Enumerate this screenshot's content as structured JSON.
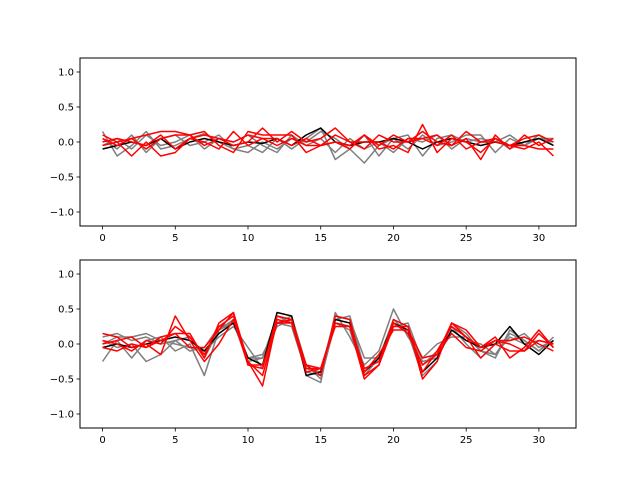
{
  "chart_data": [
    {
      "type": "line",
      "title": "",
      "xlabel": "",
      "ylabel": "",
      "xlim": [
        -1.55,
        32.55
      ],
      "ylim": [
        -1.2,
        1.2
      ],
      "xticks": [
        0,
        5,
        10,
        15,
        20,
        25,
        30
      ],
      "xtick_labels": [
        "0",
        "5",
        "10",
        "15",
        "20",
        "25",
        "30"
      ],
      "yticks": [
        1.0,
        0.5,
        0.0,
        -0.5,
        -1.0
      ],
      "ytick_labels": [
        "1.0",
        "0.5",
        "0.0",
        "−0.5",
        "−1.0"
      ],
      "grid": false,
      "x": [
        0,
        1,
        2,
        3,
        4,
        5,
        6,
        7,
        8,
        9,
        10,
        11,
        12,
        13,
        14,
        15,
        16,
        17,
        18,
        19,
        20,
        21,
        22,
        23,
        24,
        25,
        26,
        27,
        28,
        29,
        30,
        31
      ],
      "series": [
        {
          "color": "#7f7f7f",
          "values": [
            0.15,
            -0.2,
            -0.05,
            0.15,
            -0.1,
            -0.05,
            0.05,
            0.12,
            0.0,
            -0.1,
            -0.05,
            -0.15,
            0.05,
            -0.1,
            0.05,
            0.2,
            -0.25,
            -0.1,
            -0.3,
            -0.05,
            0.05,
            0.1,
            -0.2,
            0.05,
            0.1,
            0.0,
            0.05,
            0.0,
            0.1,
            -0.05,
            0.05,
            0.05
          ]
        },
        {
          "color": "#7f7f7f",
          "values": [
            0.05,
            -0.1,
            0.1,
            -0.15,
            0.05,
            0.1,
            -0.05,
            0.0,
            0.1,
            -0.1,
            -0.15,
            0.0,
            -0.1,
            0.05,
            0.0,
            0.15,
            0.05,
            -0.1,
            0.1,
            -0.2,
            0.05,
            -0.1,
            0.1,
            -0.05,
            0.0,
            0.1,
            0.1,
            -0.15,
            0.05,
            -0.05,
            0.1,
            -0.05
          ]
        },
        {
          "color": "#7f7f7f",
          "values": [
            -0.05,
            0.05,
            -0.1,
            0.1,
            -0.05,
            0.0,
            0.1,
            -0.1,
            0.05,
            0.0,
            0.1,
            -0.05,
            -0.15,
            0.1,
            -0.05,
            0.05,
            -0.15,
            0.05,
            -0.1,
            0.0,
            -0.15,
            0.05,
            0.0,
            0.1,
            -0.1,
            0.05,
            0.0,
            0.05,
            -0.1,
            0.0,
            0.05,
            0.0
          ]
        },
        {
          "color": "#000000",
          "values": [
            -0.1,
            -0.05,
            0.0,
            -0.05,
            0.05,
            -0.1,
            0.0,
            0.05,
            0.0,
            -0.05,
            0.0,
            -0.02,
            0.05,
            -0.05,
            0.1,
            0.2,
            0.0,
            -0.05,
            0.0,
            0.0,
            0.05,
            0.0,
            -0.1,
            0.0,
            0.05,
            0.0,
            -0.05,
            0.0,
            -0.05,
            0.0,
            0.05,
            -0.05
          ]
        },
        {
          "color": "#ff0000",
          "values": [
            0.1,
            0.0,
            0.05,
            0.1,
            0.15,
            0.15,
            0.1,
            0.15,
            -0.05,
            -0.15,
            0.15,
            0.1,
            0.1,
            0.1,
            -0.15,
            -0.05,
            0.0,
            -0.1,
            0.1,
            -0.1,
            -0.05,
            -0.15,
            0.25,
            -0.15,
            0.05,
            0.0,
            -0.15,
            0.05,
            -0.05,
            -0.1,
            0.0,
            -0.2
          ]
        },
        {
          "color": "#ff0000",
          "values": [
            0.05,
            -0.05,
            0.05,
            -0.1,
            0.05,
            0.1,
            0.1,
            -0.05,
            0.05,
            -0.05,
            0.0,
            0.2,
            0.0,
            0.15,
            0.0,
            0.05,
            0.2,
            0.0,
            -0.1,
            0.1,
            0.0,
            0.0,
            0.15,
            0.0,
            -0.05,
            0.05,
            -0.25,
            0.1,
            -0.1,
            0.1,
            -0.05,
            0.05
          ]
        },
        {
          "color": "#ff0000",
          "values": [
            -0.05,
            0.0,
            -0.2,
            0.0,
            -0.2,
            -0.15,
            0.05,
            0.0,
            -0.1,
            0.15,
            -0.05,
            0.05,
            -0.05,
            0.05,
            -0.05,
            -0.05,
            0.0,
            -0.05,
            0.1,
            -0.05,
            0.1,
            0.0,
            0.05,
            0.1,
            -0.05,
            0.15,
            0.0,
            0.0,
            -0.05,
            0.05,
            0.1,
            0.0
          ]
        },
        {
          "color": "#ff0000",
          "values": [
            0.0,
            0.05,
            0.0,
            -0.05,
            0.1,
            -0.1,
            0.05,
            0.1,
            0.05,
            0.0,
            0.1,
            0.05,
            0.05,
            -0.05,
            0.05,
            -0.05,
            0.1,
            0.0,
            0.0,
            0.0,
            -0.1,
            0.05,
            0.05,
            -0.05,
            0.1,
            -0.1,
            0.0,
            0.05,
            -0.05,
            -0.05,
            -0.1,
            -0.1
          ]
        }
      ]
    },
    {
      "type": "line",
      "title": "",
      "xlabel": "",
      "ylabel": "",
      "xlim": [
        -1.55,
        32.55
      ],
      "ylim": [
        -1.2,
        1.2
      ],
      "xticks": [
        0,
        5,
        10,
        15,
        20,
        25,
        30
      ],
      "xtick_labels": [
        "0",
        "5",
        "10",
        "15",
        "20",
        "25",
        "30"
      ],
      "yticks": [
        1.0,
        0.5,
        0.0,
        -0.5,
        -1.0
      ],
      "ytick_labels": [
        "1.0",
        "0.5",
        "0.0",
        "−0.5",
        "−1.0"
      ],
      "grid": false,
      "x": [
        0,
        1,
        2,
        3,
        4,
        5,
        6,
        7,
        8,
        9,
        10,
        11,
        12,
        13,
        14,
        15,
        16,
        17,
        18,
        19,
        20,
        21,
        22,
        23,
        24,
        25,
        26,
        27,
        28,
        29,
        30,
        31
      ],
      "series": [
        {
          "color": "#7f7f7f",
          "values": [
            -0.25,
            0.05,
            -0.2,
            0.05,
            0.1,
            -0.1,
            0.0,
            -0.45,
            0.2,
            0.35,
            -0.2,
            -0.15,
            0.25,
            0.35,
            -0.45,
            -0.55,
            0.45,
            0.1,
            -0.3,
            -0.1,
            0.5,
            0.1,
            -0.2,
            0.0,
            0.1,
            0.1,
            -0.1,
            -0.2,
            0.2,
            0.05,
            -0.1,
            0.1
          ]
        },
        {
          "color": "#7f7f7f",
          "values": [
            0.1,
            0.15,
            0.05,
            0.1,
            0.0,
            0.05,
            0.1,
            -0.2,
            0.2,
            0.3,
            -0.25,
            -0.2,
            0.4,
            0.3,
            -0.35,
            -0.4,
            0.4,
            0.35,
            -0.2,
            -0.2,
            0.3,
            0.2,
            -0.3,
            -0.1,
            0.25,
            0.0,
            -0.2,
            0.0,
            0.05,
            0.15,
            -0.05,
            0.05
          ]
        },
        {
          "color": "#7f7f7f",
          "values": [
            0.0,
            0.1,
            0.1,
            0.15,
            0.05,
            0.0,
            -0.05,
            -0.1,
            0.1,
            0.25,
            -0.05,
            -0.35,
            0.3,
            0.25,
            -0.4,
            -0.45,
            0.35,
            0.4,
            -0.35,
            -0.25,
            0.25,
            0.3,
            -0.25,
            -0.2,
            0.2,
            0.05,
            0.0,
            -0.15,
            0.1,
            0.0,
            0.05,
            0.0
          ]
        },
        {
          "color": "#7f7f7f",
          "values": [
            0.05,
            -0.05,
            0.0,
            -0.25,
            -0.15,
            0.05,
            -0.1,
            -0.05,
            0.25,
            0.3,
            -0.2,
            -0.2,
            0.3,
            0.4,
            -0.3,
            -0.5,
            0.3,
            0.2,
            -0.45,
            -0.2,
            0.35,
            0.15,
            -0.45,
            -0.25,
            0.3,
            0.15,
            -0.1,
            -0.15,
            0.15,
            0.05,
            -0.1,
            0.05
          ]
        },
        {
          "color": "#000000",
          "values": [
            -0.05,
            0.0,
            -0.05,
            0.0,
            0.05,
            0.1,
            0.05,
            -0.1,
            0.15,
            0.3,
            -0.2,
            -0.3,
            0.45,
            0.4,
            -0.45,
            -0.4,
            0.35,
            0.3,
            -0.4,
            -0.2,
            0.3,
            0.2,
            -0.4,
            -0.2,
            0.2,
            0.05,
            -0.05,
            0.0,
            0.25,
            0.0,
            -0.15,
            0.05
          ]
        },
        {
          "color": "#ff0000",
          "values": [
            0.15,
            0.1,
            -0.05,
            0.0,
            -0.15,
            0.4,
            0.05,
            -0.25,
            0.0,
            0.35,
            -0.3,
            -0.35,
            0.4,
            0.35,
            -0.35,
            -0.35,
            0.3,
            0.25,
            -0.5,
            -0.3,
            0.25,
            0.25,
            -0.5,
            -0.25,
            0.3,
            0.2,
            -0.05,
            0.05,
            0.05,
            0.1,
            0.0,
            -0.1
          ]
        },
        {
          "color": "#ff0000",
          "values": [
            0.05,
            0.0,
            -0.1,
            0.05,
            0.0,
            0.25,
            0.1,
            -0.15,
            0.25,
            0.4,
            -0.25,
            -0.45,
            0.3,
            0.35,
            -0.3,
            -0.45,
            0.4,
            0.35,
            -0.45,
            -0.3,
            0.35,
            0.25,
            -0.4,
            -0.1,
            0.25,
            0.1,
            -0.05,
            0.1,
            -0.2,
            -0.05,
            0.2,
            -0.05
          ]
        },
        {
          "color": "#ff0000",
          "values": [
            -0.05,
            -0.1,
            0.0,
            -0.05,
            0.1,
            0.15,
            -0.05,
            -0.05,
            0.2,
            0.45,
            -0.25,
            -0.6,
            0.35,
            0.3,
            -0.3,
            -0.35,
            0.3,
            0.25,
            -0.35,
            -0.25,
            0.3,
            0.15,
            -0.3,
            -0.15,
            0.15,
            -0.05,
            -0.1,
            0.05,
            0.0,
            -0.1,
            0.05,
            0.0
          ]
        },
        {
          "color": "#ff0000",
          "values": [
            0.0,
            0.05,
            0.1,
            -0.05,
            0.05,
            0.15,
            0.15,
            -0.2,
            0.3,
            0.45,
            -0.3,
            -0.3,
            0.3,
            0.3,
            -0.4,
            -0.35,
            0.25,
            0.25,
            -0.4,
            -0.15,
            0.2,
            0.2,
            -0.2,
            -0.15,
            0.3,
            0.1,
            -0.2,
            0.0,
            -0.1,
            -0.1,
            0.15,
            -0.05
          ]
        }
      ]
    }
  ]
}
